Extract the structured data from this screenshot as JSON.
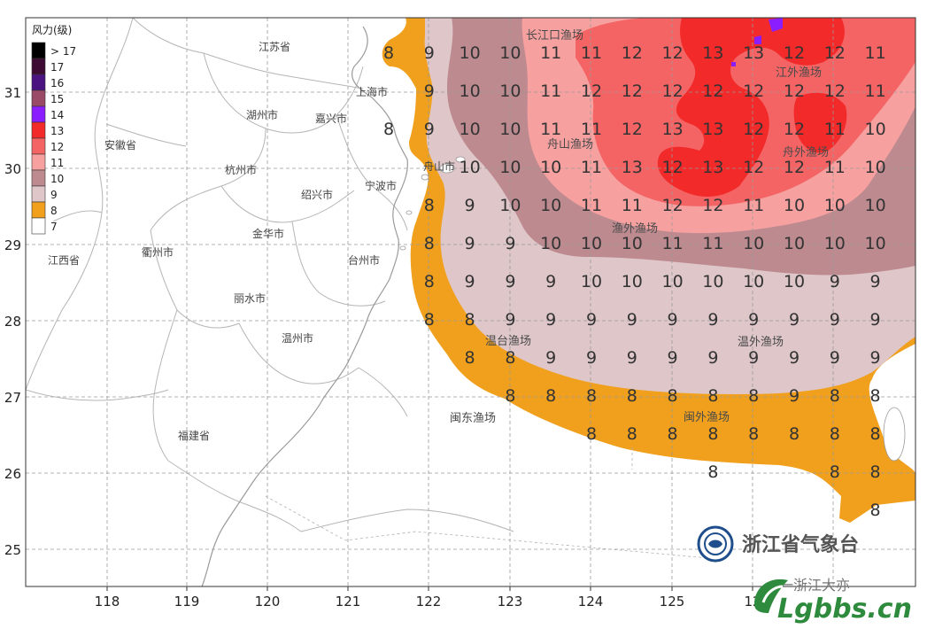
{
  "legend": {
    "title": "风力(级)",
    "items": [
      {
        "label": "> 17",
        "color": "#000000"
      },
      {
        "label": "17",
        "color": "#3d0a33"
      },
      {
        "label": "16",
        "color": "#4a1380"
      },
      {
        "label": "15",
        "color": "#9a4a66"
      },
      {
        "label": "14",
        "color": "#8a1eff"
      },
      {
        "label": "13",
        "color": "#f22a2a"
      },
      {
        "label": "12",
        "color": "#f46464"
      },
      {
        "label": "11",
        "color": "#f6a0a0"
      },
      {
        "label": "10",
        "color": "#bd8a8f"
      },
      {
        "label": "9",
        "color": "#dec6c9"
      },
      {
        "label": "8",
        "color": "#f0a01c"
      },
      {
        "label": "7",
        "color": "#ffffff"
      }
    ]
  },
  "axes": {
    "x_ticks": [
      "118",
      "119",
      "120",
      "121",
      "122",
      "123",
      "124",
      "125",
      "12"
    ],
    "y_ticks": [
      "31",
      "30",
      "29",
      "28",
      "27",
      "26",
      "25"
    ]
  },
  "places": {
    "jiangsu": "江苏省",
    "shanghai": "上海市",
    "huzhou": "湖州市",
    "jiaxing": "嘉兴市",
    "anhui": "安徽省",
    "hangzhou": "杭州市",
    "shaoxing": "绍兴市",
    "ningbo": "宁波市",
    "zhoushan": "舟山市",
    "jinhua": "金华市",
    "quzhou": "衢州市",
    "taizhou": "台州市",
    "jiangxi": "江西省",
    "lishui": "丽水市",
    "wenzhou": "温州市",
    "fujian": "福建省"
  },
  "fishing_grounds": {
    "changjiangkou": "长江口渔场",
    "jiangwai": "江外渔场",
    "zhoushan": "舟山渔场",
    "zhoushan_outer": "舟外渔场",
    "yuwai": "渔外渔场",
    "wentai": "温台渔场",
    "wenwai": "温外渔场",
    "mindong": "闽东渔场",
    "minwai": "闽外渔场"
  },
  "grid_values": [
    [
      "8",
      "9",
      "10",
      "10",
      "11",
      "11",
      "12",
      "12",
      "13",
      "13",
      "12",
      "12",
      "11"
    ],
    [
      "",
      "9",
      "10",
      "10",
      "11",
      "12",
      "12",
      "12",
      "12",
      "12",
      "12",
      "12",
      "11"
    ],
    [
      "8",
      "9",
      "10",
      "10",
      "11",
      "11",
      "12",
      "13",
      "13",
      "12",
      "12",
      "11",
      "10"
    ],
    [
      "",
      "",
      "10",
      "10",
      "10",
      "11",
      "13",
      "12",
      "13",
      "12",
      "12",
      "11",
      "10"
    ],
    [
      "",
      "8",
      "9",
      "10",
      "10",
      "11",
      "11",
      "12",
      "12",
      "11",
      "10",
      "10",
      "10"
    ],
    [
      "",
      "8",
      "9",
      "9",
      "10",
      "10",
      "10",
      "11",
      "11",
      "10",
      "10",
      "10",
      "10"
    ],
    [
      "",
      "8",
      "9",
      "9",
      "9",
      "10",
      "10",
      "10",
      "10",
      "10",
      "10",
      "9",
      "9"
    ],
    [
      "",
      "8",
      "8",
      "9",
      "9",
      "9",
      "9",
      "9",
      "9",
      "9",
      "9",
      "9",
      "9"
    ],
    [
      "",
      "",
      "8",
      "8",
      "9",
      "9",
      "9",
      "9",
      "9",
      "9",
      "9",
      "9",
      "9"
    ],
    [
      "",
      "",
      "",
      "8",
      "8",
      "8",
      "8",
      "8",
      "8",
      "8",
      "9",
      "8",
      "8"
    ],
    [
      "",
      "",
      "",
      "",
      "",
      "8",
      "8",
      "8",
      "8",
      "8",
      "8",
      "8",
      "8"
    ],
    [
      "",
      "",
      "",
      "",
      "",
      "",
      "",
      "",
      "8",
      "",
      "",
      "8",
      "8"
    ],
    [
      "",
      "",
      "",
      "",
      "",
      "",
      "",
      "",
      "",
      "",
      "",
      "",
      "8"
    ]
  ],
  "watermark": {
    "agency": "浙江省气象台",
    "site": "Lgbbs.cn",
    "partial": "一浙江大亦"
  }
}
